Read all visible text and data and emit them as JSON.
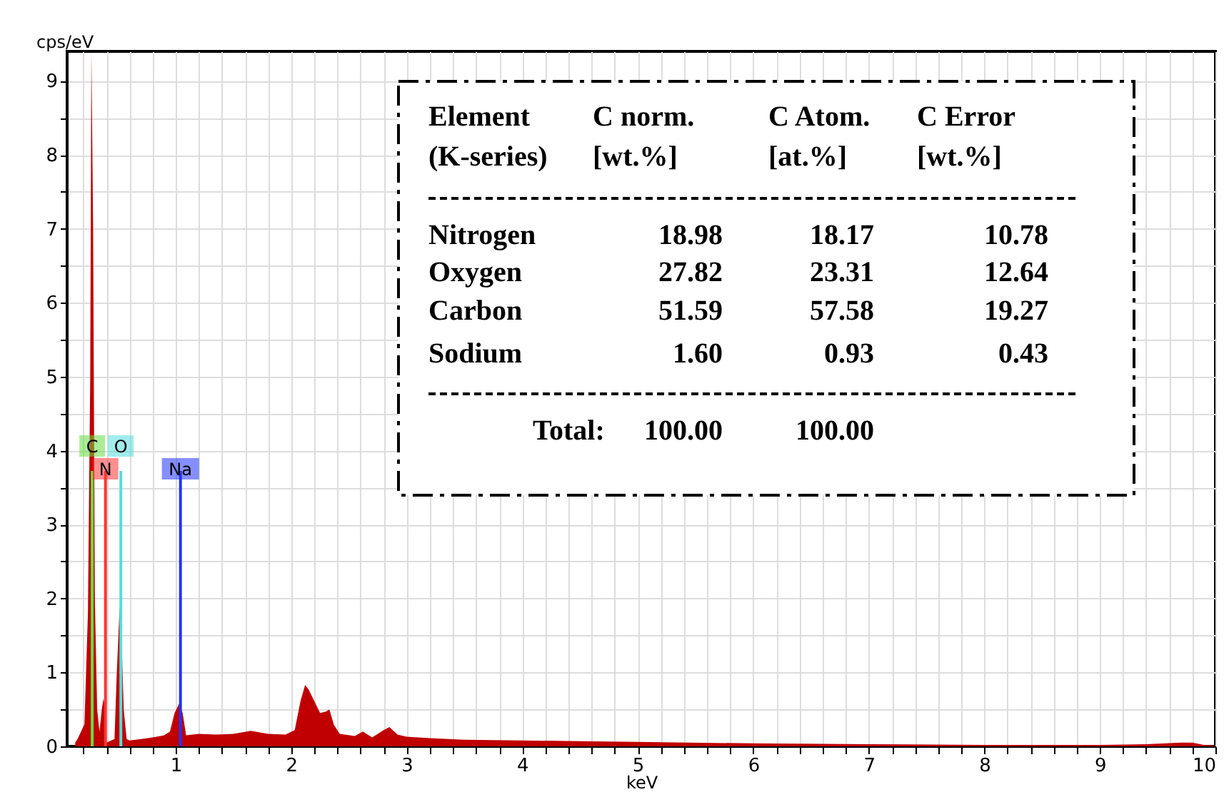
{
  "chart_data": {
    "type": "area",
    "xlabel": "keV",
    "ylabel": "cps/eV",
    "x": [
      0.13,
      0.15,
      0.21,
      0.24,
      0.26,
      0.27,
      0.285,
      0.3,
      0.32,
      0.34,
      0.36,
      0.375,
      0.39,
      0.4,
      0.47,
      0.49,
      0.515,
      0.53,
      0.55,
      0.575,
      0.6,
      0.7,
      0.8,
      0.9,
      0.95,
      0.99,
      1.03,
      1.06,
      1.09,
      1.2,
      1.35,
      1.5,
      1.65,
      1.8,
      1.95,
      2.03,
      2.08,
      2.12,
      2.15,
      2.2,
      2.25,
      2.3,
      2.33,
      2.37,
      2.42,
      2.55,
      2.62,
      2.7,
      2.8,
      2.85,
      2.92,
      3.0,
      3.2,
      3.5,
      4.0,
      4.5,
      5.0,
      6.0,
      7.0,
      8.0,
      9.0,
      9.4,
      9.7,
      9.8,
      9.9,
      10.0
    ],
    "values": [
      0.05,
      0.1,
      0.3,
      1.8,
      5,
      9.4,
      7,
      2,
      0.5,
      0.2,
      0.5,
      0.65,
      0.5,
      0.05,
      0.1,
      1.0,
      1.9,
      1.5,
      0.5,
      0.1,
      0.08,
      0.1,
      0.12,
      0.15,
      0.2,
      0.45,
      0.58,
      0.45,
      0.15,
      0.17,
      0.16,
      0.17,
      0.21,
      0.17,
      0.16,
      0.22,
      0.61,
      0.83,
      0.77,
      0.61,
      0.45,
      0.47,
      0.5,
      0.29,
      0.17,
      0.14,
      0.2,
      0.12,
      0.22,
      0.26,
      0.16,
      0.13,
      0.11,
      0.09,
      0.08,
      0.07,
      0.06,
      0.04,
      0.03,
      0.02,
      0.02,
      0.03,
      0.05,
      0.05,
      0.02,
      0.01
    ],
    "color": "#c00000",
    "xlim": [
      0.06,
      10
    ],
    "xticks": [
      {
        "value": 0.2,
        "label": null
      },
      {
        "value": 0.4,
        "label": null
      },
      {
        "value": 0.6,
        "label": null
      },
      {
        "value": 0.8,
        "label": null
      },
      1,
      {
        "value": 1.2,
        "label": null
      },
      {
        "value": 1.4,
        "label": null
      },
      {
        "value": 1.6,
        "label": null
      },
      {
        "value": 1.8,
        "label": null
      },
      2,
      {
        "value": 2.2,
        "label": null
      },
      {
        "value": 2.4,
        "label": null
      },
      {
        "value": 2.6,
        "label": null
      },
      {
        "value": 2.8,
        "label": null
      },
      3,
      {
        "value": 3.2,
        "label": null
      },
      {
        "value": 3.4,
        "label": null
      },
      {
        "value": 3.6,
        "label": null
      },
      {
        "value": 3.8,
        "label": null
      },
      4,
      {
        "value": 4.2,
        "label": null
      },
      {
        "value": 4.4,
        "label": null
      },
      {
        "value": 4.6,
        "label": null
      },
      {
        "value": 4.8,
        "label": null
      },
      5,
      {
        "value": 5.2,
        "label": null
      },
      {
        "value": 5.4,
        "label": null
      },
      {
        "value": 5.6,
        "label": null
      },
      {
        "value": 5.8,
        "label": null
      },
      6,
      {
        "value": 6.2,
        "label": null
      },
      {
        "value": 6.4,
        "label": null
      },
      {
        "value": 6.6,
        "label": null
      },
      {
        "value": 6.8,
        "label": null
      },
      7,
      {
        "value": 7.2,
        "label": null
      },
      {
        "value": 7.4,
        "label": null
      },
      {
        "value": 7.6,
        "label": null
      },
      {
        "value": 7.8,
        "label": null
      },
      8,
      {
        "value": 8.2,
        "label": null
      },
      {
        "value": 8.4,
        "label": null
      },
      {
        "value": 8.6,
        "label": null
      },
      {
        "value": 8.8,
        "label": null
      },
      9,
      {
        "value": 9.2,
        "label": null
      },
      {
        "value": 9.4,
        "label": null
      },
      {
        "value": 9.6,
        "label": null
      },
      {
        "value": 9.8,
        "label": null
      },
      10
    ],
    "ylim": [
      0,
      9.4
    ],
    "yticks": [
      0,
      {
        "value": 0.5,
        "label": null
      },
      1,
      {
        "value": 1.5,
        "label": null
      },
      2,
      {
        "value": 2.5,
        "label": null
      },
      3,
      {
        "value": 3.5,
        "label": null
      },
      4,
      {
        "value": 4.5,
        "label": null
      },
      5,
      {
        "value": 5.5,
        "label": null
      },
      6,
      {
        "value": 6.5,
        "label": null
      },
      7,
      {
        "value": 7.5,
        "label": null
      },
      8,
      {
        "value": 8.5,
        "label": null
      },
      9
    ],
    "grid": true,
    "ref_lines": [
      {
        "axis": "x",
        "value": 0.277,
        "label": "C",
        "color": "#66dd44"
      },
      {
        "axis": "x",
        "value": 0.392,
        "label": "N",
        "color": "#ff3333"
      },
      {
        "axis": "x",
        "value": 0.525,
        "label": "O",
        "color": "#55dddd"
      },
      {
        "axis": "x",
        "value": 1.041,
        "label": "Na",
        "color": "#2233ff"
      }
    ],
    "annotations": [
      "Element",
      "C norm.",
      "C Atom.",
      "C Error",
      "(K-series)",
      "[wt.%]",
      "[at.%]",
      "[wt.%]",
      "Nitrogen",
      "18.98",
      "18.17",
      "10.78",
      "Oxygen",
      "27.82",
      "23.31",
      "12.64",
      "Carbon",
      "51.59",
      "57.58",
      "19.27",
      "Sodium",
      "1.60",
      "0.93",
      "0.43",
      "Total:",
      "100.00",
      "100.00"
    ]
  }
}
